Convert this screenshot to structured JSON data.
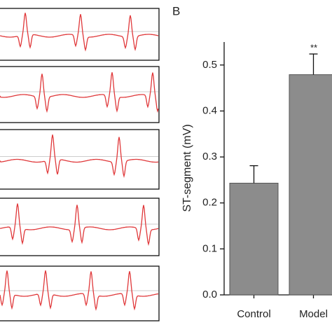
{
  "chart_data": {
    "type": "bar",
    "panel_label": "B",
    "y_label": "ST-segment (mV)",
    "categories": [
      "Control",
      "Model"
    ],
    "values": [
      0.243,
      0.479
    ],
    "errors": [
      0.038,
      0.045
    ],
    "color": "#8c8c8c",
    "annotations": [
      null,
      "**"
    ],
    "ylim": [
      0,
      0.55
    ],
    "yticks": [
      {
        "value": 0,
        "label": "0.0"
      },
      0.1,
      0.2,
      0.3,
      0.4,
      0.5
    ]
  }
}
